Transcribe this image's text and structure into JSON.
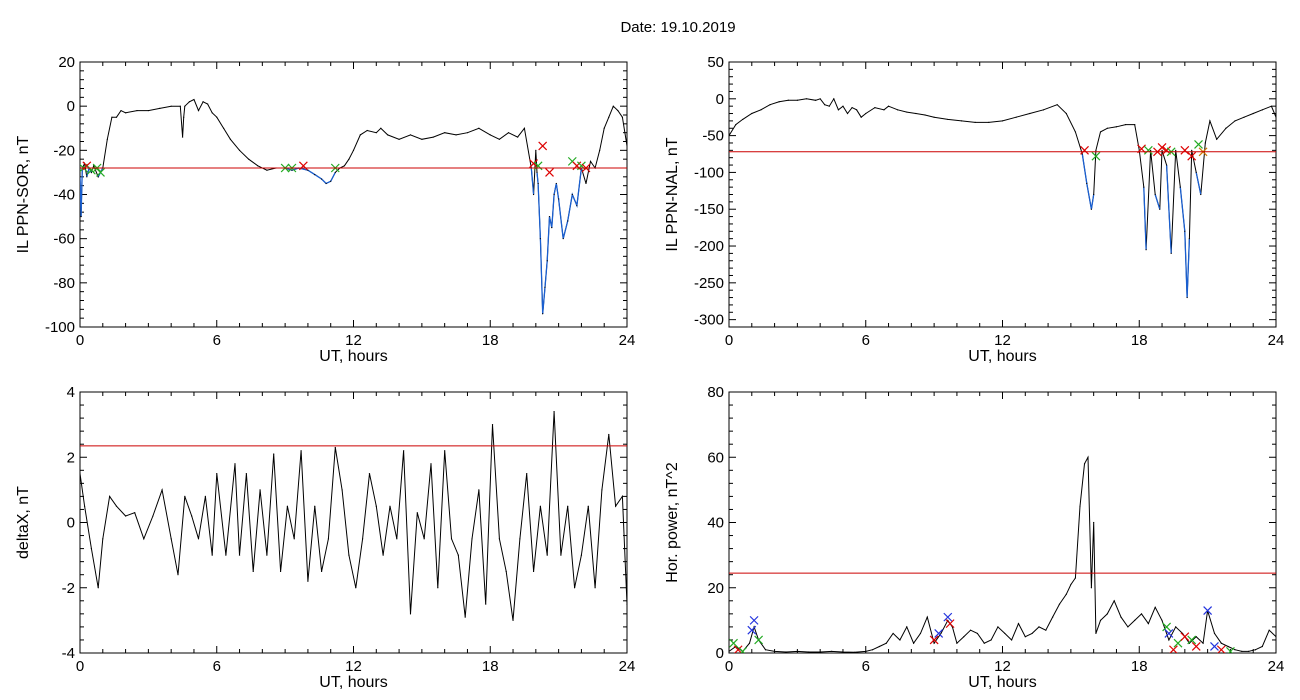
{
  "title": "Date:  19.10.2019",
  "colors": {
    "trace": "#000000",
    "threshold": "#cc0000",
    "highlight": "#1a5fd0",
    "mark_red": "#dd0000",
    "mark_green": "#22aa22",
    "mark_blue": "#2233dd",
    "mark_orange": "#cc7700"
  },
  "chart_data": [
    {
      "type": "line",
      "ylabel": "IL PPN-SOR, nT",
      "xlabel": "UT, hours",
      "xlim": [
        0,
        24
      ],
      "ylim": [
        -100,
        20
      ],
      "xticks": [
        0,
        6,
        12,
        18,
        24
      ],
      "yticks": [
        -100,
        -80,
        -60,
        -40,
        -20,
        0,
        20
      ],
      "threshold": -28,
      "series": [
        {
          "x": [
            0,
            0.05,
            0.1,
            0.2,
            0.3,
            0.4,
            0.5,
            0.6,
            0.8,
            1.0,
            1.2,
            1.4,
            1.6,
            1.8,
            2.0,
            2.5,
            3.0,
            3.5,
            4.0,
            4.4,
            4.5,
            4.55,
            4.6,
            4.8,
            5.0,
            5.2,
            5.4,
            5.6,
            5.8,
            6.0,
            6.3,
            6.6,
            7.0,
            7.4,
            7.8,
            8.2,
            8.6,
            9.0,
            9.3,
            9.6,
            10.0,
            10.3,
            10.6,
            10.8,
            11.0,
            11.2,
            11.4,
            11.6,
            11.8,
            12.0,
            12.3,
            12.6,
            13.0,
            13.2,
            13.5,
            14.0,
            14.5,
            15.0,
            15.5,
            16.0,
            16.5,
            17.0,
            17.5,
            18.0,
            18.4,
            18.8,
            19.2,
            19.5,
            19.8,
            19.9,
            20.0,
            20.05,
            20.1,
            20.2,
            20.3,
            20.4,
            20.5,
            20.6,
            20.7,
            20.8,
            20.9,
            21.0,
            21.2,
            21.4,
            21.6,
            21.8,
            22.0,
            22.2,
            22.4,
            22.6,
            22.8,
            23.0,
            23.2,
            23.4,
            23.6,
            23.8,
            24.0
          ],
          "y": [
            -32,
            -50,
            -28,
            -26,
            -32,
            -28,
            -30,
            -27,
            -32,
            -28,
            -15,
            -5,
            -5,
            -2,
            -3,
            -2,
            -2,
            -1,
            0,
            0,
            -14,
            -5,
            0,
            2,
            3,
            -2,
            2,
            1,
            -3,
            -5,
            -10,
            -15,
            -20,
            -24,
            -27,
            -29,
            -28,
            -28,
            -29,
            -28,
            -29,
            -31,
            -33,
            -35,
            -34,
            -30,
            -28,
            -27,
            -24,
            -20,
            -13,
            -11,
            -12,
            -10,
            -13,
            -15,
            -13,
            -15,
            -14,
            -12,
            -13,
            -12,
            -10,
            -13,
            -15,
            -12,
            -14,
            -10,
            -28,
            -40,
            -20,
            -30,
            -35,
            -60,
            -94,
            -82,
            -70,
            -50,
            -55,
            -40,
            -35,
            -42,
            -60,
            -52,
            -40,
            -45,
            -28,
            -35,
            -25,
            -28,
            -20,
            -10,
            -5,
            0,
            -2,
            -5,
            -18
          ],
          "highlight_ranges": [
            [
              0,
              1.0
            ],
            [
              9.0,
              11.3
            ],
            [
              19.8,
              22.0
            ]
          ],
          "markers": [
            {
              "x": 0.15,
              "y": -28,
              "color": "mark_green"
            },
            {
              "x": 0.3,
              "y": -27,
              "color": "mark_red"
            },
            {
              "x": 0.5,
              "y": -29,
              "color": "mark_green"
            },
            {
              "x": 0.75,
              "y": -28,
              "color": "mark_green"
            },
            {
              "x": 0.9,
              "y": -30,
              "color": "mark_green"
            },
            {
              "x": 9.0,
              "y": -28,
              "color": "mark_green"
            },
            {
              "x": 9.3,
              "y": -28,
              "color": "mark_green"
            },
            {
              "x": 9.8,
              "y": -27,
              "color": "mark_red"
            },
            {
              "x": 11.2,
              "y": -28,
              "color": "mark_green"
            },
            {
              "x": 19.9,
              "y": -26,
              "color": "mark_red"
            },
            {
              "x": 20.1,
              "y": -27,
              "color": "mark_green"
            },
            {
              "x": 20.3,
              "y": -18,
              "color": "mark_red"
            },
            {
              "x": 20.6,
              "y": -30,
              "color": "mark_red"
            },
            {
              "x": 21.6,
              "y": -25,
              "color": "mark_green"
            },
            {
              "x": 21.8,
              "y": -27,
              "color": "mark_red"
            },
            {
              "x": 22.0,
              "y": -27,
              "color": "mark_green"
            },
            {
              "x": 22.2,
              "y": -28,
              "color": "mark_red"
            }
          ]
        }
      ]
    },
    {
      "type": "line",
      "ylabel": "IL PPN-NAL, nT",
      "xlabel": "UT, hours",
      "xlim": [
        0,
        24
      ],
      "ylim": [
        -310,
        50
      ],
      "xticks": [
        0,
        6,
        12,
        18,
        24
      ],
      "yticks": [
        -300,
        -250,
        -200,
        -150,
        -100,
        -50,
        0,
        50
      ],
      "threshold": -72,
      "series": [
        {
          "x": [
            0,
            0.3,
            0.6,
            1.0,
            1.4,
            1.8,
            2.2,
            2.6,
            3.0,
            3.4,
            3.8,
            4.0,
            4.2,
            4.4,
            4.6,
            4.8,
            5.0,
            5.2,
            5.4,
            5.6,
            5.8,
            6.0,
            6.4,
            6.8,
            7.0,
            7.4,
            7.8,
            8.2,
            8.6,
            9.0,
            9.6,
            10.2,
            10.8,
            11.4,
            12.0,
            12.6,
            13.2,
            13.8,
            14.4,
            14.8,
            15.2,
            15.5,
            15.7,
            15.9,
            16.0,
            16.1,
            16.3,
            16.6,
            17.0,
            17.4,
            17.8,
            18.0,
            18.2,
            18.3,
            18.5,
            18.7,
            18.9,
            19.0,
            19.2,
            19.4,
            19.6,
            19.8,
            20.0,
            20.1,
            20.2,
            20.3,
            20.5,
            20.7,
            20.9,
            21.1,
            21.4,
            21.8,
            22.2,
            22.6,
            23.0,
            23.4,
            23.8,
            24.0
          ],
          "y": [
            -50,
            -35,
            -28,
            -20,
            -15,
            -8,
            -4,
            -2,
            -2,
            0,
            -2,
            0,
            -8,
            -10,
            0,
            -15,
            -10,
            -20,
            -12,
            -15,
            -25,
            -20,
            -12,
            -15,
            -10,
            -15,
            -18,
            -20,
            -22,
            -25,
            -28,
            -30,
            -32,
            -32,
            -30,
            -25,
            -20,
            -15,
            -8,
            -20,
            -45,
            -75,
            -115,
            -150,
            -130,
            -70,
            -45,
            -40,
            -38,
            -35,
            -35,
            -70,
            -120,
            -205,
            -70,
            -130,
            -150,
            -70,
            -90,
            -210,
            -70,
            -120,
            -180,
            -270,
            -190,
            -70,
            -100,
            -130,
            -60,
            -30,
            -55,
            -40,
            -30,
            -25,
            -20,
            -15,
            -10,
            -25
          ],
          "highlight_ranges": [
            [
              15.4,
              16.2
            ],
            [
              18.0,
              20.9
            ]
          ],
          "markers": [
            {
              "x": 15.6,
              "y": -70,
              "color": "mark_red"
            },
            {
              "x": 16.1,
              "y": -78,
              "color": "mark_green"
            },
            {
              "x": 18.1,
              "y": -68,
              "color": "mark_red"
            },
            {
              "x": 18.4,
              "y": -70,
              "color": "mark_green"
            },
            {
              "x": 18.8,
              "y": -72,
              "color": "mark_red"
            },
            {
              "x": 19.0,
              "y": -66,
              "color": "mark_red"
            },
            {
              "x": 19.2,
              "y": -70,
              "color": "mark_red"
            },
            {
              "x": 19.4,
              "y": -72,
              "color": "mark_green"
            },
            {
              "x": 20.0,
              "y": -70,
              "color": "mark_red"
            },
            {
              "x": 20.3,
              "y": -78,
              "color": "mark_red"
            },
            {
              "x": 20.6,
              "y": -62,
              "color": "mark_green"
            },
            {
              "x": 20.8,
              "y": -72,
              "color": "mark_orange"
            }
          ]
        }
      ]
    },
    {
      "type": "line",
      "ylabel": "deltaX, nT",
      "xlabel": "UT, hours",
      "xlim": [
        0,
        24
      ],
      "ylim": [
        -4,
        4
      ],
      "xticks": [
        0,
        6,
        12,
        18,
        24
      ],
      "yticks": [
        -4,
        -2,
        0,
        2,
        4
      ],
      "threshold": 2.35,
      "series": [
        {
          "x": [
            0,
            0.2,
            0.5,
            0.8,
            1.0,
            1.3,
            1.6,
            2.0,
            2.4,
            2.8,
            3.2,
            3.6,
            4.0,
            4.3,
            4.6,
            4.9,
            5.2,
            5.5,
            5.8,
            6.0,
            6.4,
            6.8,
            7.0,
            7.3,
            7.6,
            7.9,
            8.2,
            8.5,
            8.8,
            9.1,
            9.4,
            9.7,
            10.0,
            10.3,
            10.6,
            10.9,
            11.2,
            11.5,
            11.8,
            12.1,
            12.4,
            12.7,
            13.0,
            13.3,
            13.6,
            13.9,
            14.2,
            14.5,
            14.8,
            15.1,
            15.4,
            15.7,
            16.0,
            16.3,
            16.6,
            16.9,
            17.2,
            17.5,
            17.8,
            18.1,
            18.4,
            18.7,
            19.0,
            19.3,
            19.6,
            19.9,
            20.2,
            20.5,
            20.8,
            21.1,
            21.4,
            21.7,
            22.0,
            22.3,
            22.6,
            22.9,
            23.2,
            23.5,
            23.8,
            24.0
          ],
          "y": [
            1.5,
            0.5,
            -0.8,
            -2.0,
            -0.5,
            0.8,
            0.5,
            0.2,
            0.3,
            -0.5,
            0.2,
            1.0,
            -0.5,
            -1.6,
            0.8,
            0.2,
            -0.5,
            0.8,
            -1.0,
            1.5,
            -1.0,
            1.8,
            -1.0,
            1.5,
            -1.5,
            1.0,
            -1.0,
            2.1,
            -1.5,
            0.5,
            -0.5,
            2.2,
            -1.8,
            0.5,
            -1.5,
            -0.5,
            2.3,
            1.0,
            -1.0,
            -2.0,
            -0.5,
            1.5,
            0.5,
            -1.0,
            0.5,
            -0.5,
            2.2,
            -2.8,
            0.3,
            -0.5,
            1.8,
            -2.0,
            2.2,
            -0.5,
            -1.0,
            -2.9,
            -0.5,
            1.0,
            -2.5,
            3.0,
            -0.5,
            -1.5,
            -3.0,
            -0.5,
            1.5,
            -1.5,
            0.5,
            -1.0,
            3.4,
            -1.0,
            0.5,
            -2.0,
            -1.0,
            0.5,
            -2.0,
            1.0,
            2.7,
            0.5,
            0.8,
            -2.5
          ]
        }
      ]
    },
    {
      "type": "line",
      "ylabel": "Hor. power, nT^2",
      "xlabel": "UT, hours",
      "xlim": [
        0,
        24
      ],
      "ylim": [
        0,
        80
      ],
      "xticks": [
        0,
        6,
        12,
        18,
        24
      ],
      "yticks": [
        0,
        20,
        40,
        60,
        80
      ],
      "threshold": 24.5,
      "series": [
        {
          "x": [
            0,
            0.3,
            0.6,
            0.9,
            1.1,
            1.3,
            1.6,
            2.0,
            2.5,
            3.0,
            3.5,
            4.0,
            4.5,
            5.0,
            5.5,
            6.0,
            6.3,
            6.6,
            6.9,
            7.2,
            7.5,
            7.8,
            8.1,
            8.4,
            8.7,
            9.0,
            9.3,
            9.6,
            9.8,
            10.0,
            10.3,
            10.6,
            10.9,
            11.2,
            11.5,
            11.8,
            12.1,
            12.4,
            12.7,
            13.0,
            13.3,
            13.6,
            13.9,
            14.2,
            14.5,
            14.8,
            15.0,
            15.2,
            15.4,
            15.6,
            15.75,
            15.9,
            16.0,
            16.1,
            16.3,
            16.6,
            16.9,
            17.2,
            17.5,
            17.8,
            18.1,
            18.4,
            18.7,
            19.0,
            19.3,
            19.6,
            19.9,
            20.2,
            20.5,
            20.8,
            21.0,
            21.3,
            21.6,
            21.9,
            22.2,
            22.5,
            22.8,
            23.1,
            23.4,
            23.7,
            24.0
          ],
          "y": [
            0.5,
            2,
            0.5,
            3,
            8,
            4,
            1,
            0.5,
            0.3,
            0.5,
            0.3,
            0.3,
            0.5,
            0.3,
            0.2,
            0.5,
            1,
            2,
            3,
            6,
            4,
            8,
            3,
            6,
            11,
            3,
            6,
            10,
            8,
            3,
            5,
            7,
            6,
            3,
            4,
            8,
            6,
            4,
            9,
            5,
            6,
            8,
            7,
            11,
            15,
            18,
            21,
            23,
            45,
            58,
            60,
            20,
            40,
            6,
            10,
            12,
            16,
            11,
            8,
            10,
            12,
            9,
            14,
            10,
            4,
            8,
            6,
            3,
            5,
            3,
            13,
            6,
            3,
            2,
            1,
            0.5,
            0.5,
            1,
            2,
            7,
            5
          ],
          "markers": [
            {
              "x": 0.2,
              "y": 3,
              "color": "mark_green"
            },
            {
              "x": 0.4,
              "y": 1,
              "color": "mark_red"
            },
            {
              "x": 0.6,
              "y": 0.5,
              "color": "mark_green"
            },
            {
              "x": 1.0,
              "y": 7,
              "color": "mark_blue"
            },
            {
              "x": 1.1,
              "y": 10,
              "color": "mark_blue"
            },
            {
              "x": 1.3,
              "y": 4,
              "color": "mark_green"
            },
            {
              "x": 9.0,
              "y": 4,
              "color": "mark_red"
            },
            {
              "x": 9.2,
              "y": 6,
              "color": "mark_blue"
            },
            {
              "x": 9.6,
              "y": 11,
              "color": "mark_blue"
            },
            {
              "x": 9.7,
              "y": 9,
              "color": "mark_red"
            },
            {
              "x": 19.2,
              "y": 8,
              "color": "mark_green"
            },
            {
              "x": 19.3,
              "y": 6,
              "color": "mark_blue"
            },
            {
              "x": 19.5,
              "y": 1,
              "color": "mark_red"
            },
            {
              "x": 19.7,
              "y": 3,
              "color": "mark_green"
            },
            {
              "x": 20.0,
              "y": 5,
              "color": "mark_red"
            },
            {
              "x": 20.3,
              "y": 4,
              "color": "mark_green"
            },
            {
              "x": 20.5,
              "y": 2,
              "color": "mark_red"
            },
            {
              "x": 21.0,
              "y": 13,
              "color": "mark_blue"
            },
            {
              "x": 21.3,
              "y": 2,
              "color": "mark_blue"
            },
            {
              "x": 21.6,
              "y": 1,
              "color": "mark_red"
            },
            {
              "x": 22.0,
              "y": 0.5,
              "color": "mark_green"
            }
          ]
        }
      ]
    }
  ]
}
